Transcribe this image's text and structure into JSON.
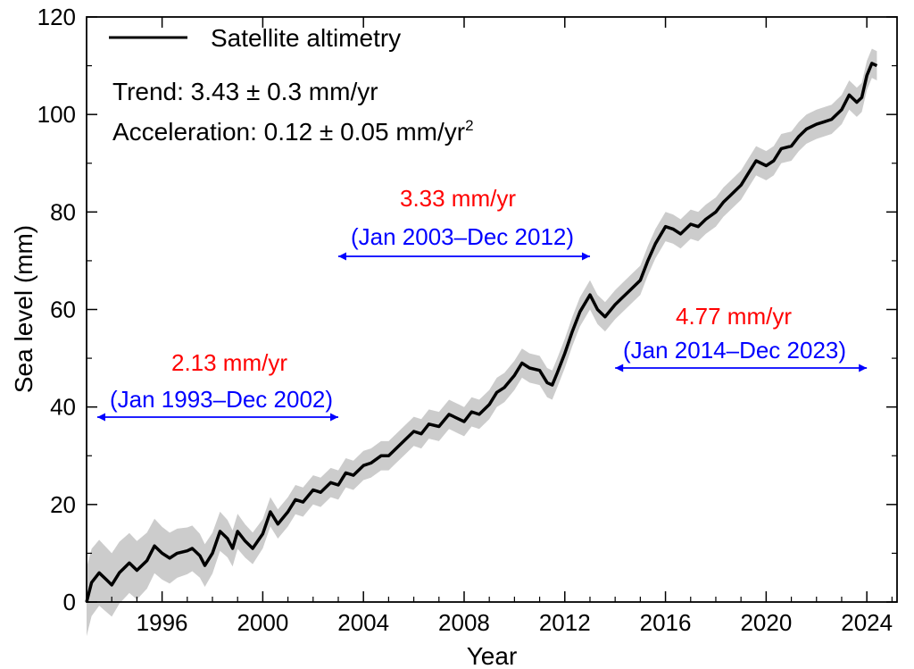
{
  "colors": {
    "line": "#000000",
    "band": "#cccccc",
    "rate": "#ff0000",
    "period": "#0000ff",
    "axis": "#000000"
  },
  "chart_data": {
    "type": "line",
    "xlabel": "Year",
    "ylabel": "Sea level (mm)",
    "xlim": [
      1993,
      2025.2
    ],
    "ylim": [
      0,
      120
    ],
    "x_ticks": [
      1996,
      2000,
      2004,
      2008,
      2012,
      2016,
      2020,
      2024
    ],
    "y_ticks": [
      0,
      20,
      40,
      60,
      80,
      100,
      120
    ],
    "legend": {
      "label": "Satellite altimetry",
      "placement": "top-left"
    },
    "stats": {
      "trend": "Trend: 3.43 ± 0.3 mm/yr",
      "acceleration": "Acceleration: 0.12 ± 0.05 mm/yr",
      "acceleration_exp": "2"
    },
    "uncertainty_halfwidth_mm": [
      [
        1993.0,
        7
      ],
      [
        1995.0,
        6
      ],
      [
        2000.0,
        3
      ],
      [
        2025.0,
        3
      ]
    ],
    "periods": [
      {
        "rate": "2.13 mm/yr",
        "label": "(Jan 1993–Dec 2002)",
        "start": 1993.0,
        "end": 2003.0
      },
      {
        "rate": "3.33 mm/yr",
        "label": "(Jan 2003–Dec 2012)",
        "start": 2003.0,
        "end": 2013.0
      },
      {
        "rate": "4.77 mm/yr",
        "label": "(Jan 2014–Dec 2023)",
        "start": 2014.0,
        "end": 2024.0
      }
    ],
    "series": [
      {
        "name": "Satellite altimetry",
        "points": [
          [
            1993.0,
            0
          ],
          [
            1993.2,
            4
          ],
          [
            1993.5,
            6
          ],
          [
            1993.8,
            4.5
          ],
          [
            1994.0,
            3.5
          ],
          [
            1994.3,
            6
          ],
          [
            1994.7,
            8
          ],
          [
            1995.0,
            6.5
          ],
          [
            1995.4,
            8.5
          ],
          [
            1995.7,
            11.5
          ],
          [
            1996.0,
            10
          ],
          [
            1996.3,
            9
          ],
          [
            1996.6,
            10
          ],
          [
            1997.0,
            10.5
          ],
          [
            1997.2,
            11
          ],
          [
            1997.5,
            9.5
          ],
          [
            1997.7,
            7.5
          ],
          [
            1998.0,
            10
          ],
          [
            1998.3,
            14.5
          ],
          [
            1998.6,
            13
          ],
          [
            1998.8,
            11
          ],
          [
            1999.0,
            14.5
          ],
          [
            1999.3,
            12.5
          ],
          [
            1999.6,
            11
          ],
          [
            2000.0,
            14
          ],
          [
            2000.3,
            18.5
          ],
          [
            2000.6,
            16
          ],
          [
            2001.0,
            18.5
          ],
          [
            2001.3,
            21
          ],
          [
            2001.6,
            20.5
          ],
          [
            2002.0,
            23
          ],
          [
            2002.3,
            22.5
          ],
          [
            2002.7,
            24.5
          ],
          [
            2003.0,
            24
          ],
          [
            2003.3,
            26.5
          ],
          [
            2003.6,
            26
          ],
          [
            2004.0,
            28
          ],
          [
            2004.3,
            28.5
          ],
          [
            2004.7,
            30
          ],
          [
            2005.0,
            30
          ],
          [
            2005.3,
            31.5
          ],
          [
            2005.6,
            33
          ],
          [
            2006.0,
            35
          ],
          [
            2006.3,
            34.5
          ],
          [
            2006.6,
            36.5
          ],
          [
            2007.0,
            36
          ],
          [
            2007.4,
            38.5
          ],
          [
            2007.8,
            37.5
          ],
          [
            2008.0,
            37
          ],
          [
            2008.3,
            39
          ],
          [
            2008.6,
            38.5
          ],
          [
            2009.0,
            40.5
          ],
          [
            2009.3,
            43
          ],
          [
            2009.6,
            44
          ],
          [
            2010.0,
            46.5
          ],
          [
            2010.3,
            49
          ],
          [
            2010.6,
            48
          ],
          [
            2011.0,
            47.5
          ],
          [
            2011.3,
            45
          ],
          [
            2011.5,
            44.5
          ],
          [
            2011.7,
            47
          ],
          [
            2012.0,
            51
          ],
          [
            2012.3,
            55.5
          ],
          [
            2012.6,
            59.5
          ],
          [
            2013.0,
            63
          ],
          [
            2013.3,
            60
          ],
          [
            2013.6,
            58.5
          ],
          [
            2014.0,
            61
          ],
          [
            2014.3,
            62.5
          ],
          [
            2014.6,
            64
          ],
          [
            2015.0,
            66
          ],
          [
            2015.3,
            70
          ],
          [
            2015.6,
            73.5
          ],
          [
            2016.0,
            77
          ],
          [
            2016.3,
            76.5
          ],
          [
            2016.6,
            75.5
          ],
          [
            2017.0,
            77.5
          ],
          [
            2017.3,
            77
          ],
          [
            2017.6,
            78.5
          ],
          [
            2018.0,
            80
          ],
          [
            2018.3,
            82
          ],
          [
            2018.6,
            83.5
          ],
          [
            2019.0,
            85.5
          ],
          [
            2019.3,
            88
          ],
          [
            2019.6,
            90.5
          ],
          [
            2020.0,
            89.5
          ],
          [
            2020.3,
            90.5
          ],
          [
            2020.6,
            93
          ],
          [
            2021.0,
            93.5
          ],
          [
            2021.3,
            95.5
          ],
          [
            2021.6,
            97
          ],
          [
            2022.0,
            98
          ],
          [
            2022.3,
            98.5
          ],
          [
            2022.6,
            99
          ],
          [
            2023.0,
            101
          ],
          [
            2023.3,
            104
          ],
          [
            2023.6,
            102.5
          ],
          [
            2023.8,
            103.5
          ],
          [
            2024.0,
            108
          ],
          [
            2024.2,
            110.5
          ],
          [
            2024.4,
            110
          ]
        ]
      }
    ]
  }
}
